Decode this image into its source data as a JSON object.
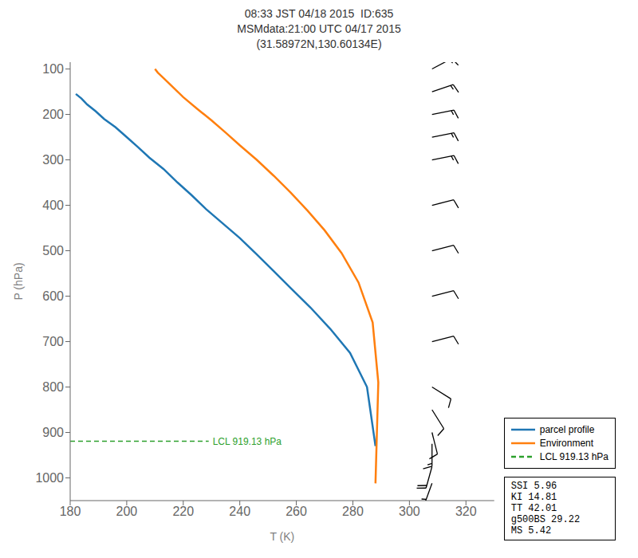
{
  "chart_data": {
    "type": "line",
    "title": "08:33 JST 04/18 2015  ID:635\nMSMdata:21:00 UTC 04/17 2015\n(31.58972N,130.60134E)",
    "xlabel": "T (K)",
    "ylabel": "P (hPa)",
    "xlim": [
      180,
      330
    ],
    "ylim": [
      1050,
      85
    ],
    "xticks": [
      180,
      200,
      220,
      240,
      260,
      280,
      300,
      320
    ],
    "yticks": [
      100,
      200,
      300,
      400,
      500,
      600,
      700,
      800,
      900,
      1000
    ],
    "grid": false,
    "legend": "lower right",
    "series": [
      {
        "name": "parcel profile",
        "color": "#1f77b4",
        "line_style": "solid",
        "x": [
          182,
          184,
          186,
          189,
          192,
          196,
          200,
          204,
          208,
          213,
          218,
          223,
          228,
          234,
          240,
          246,
          252,
          258,
          265,
          272,
          279,
          285,
          288
        ],
        "y": [
          155,
          165,
          178,
          193,
          210,
          228,
          250,
          272,
          295,
          320,
          350,
          378,
          408,
          440,
          472,
          508,
          545,
          582,
          625,
          672,
          725,
          800,
          930
        ]
      },
      {
        "name": "Environment",
        "color": "#ff7f0e",
        "line_style": "solid",
        "x": [
          210,
          211,
          213,
          216,
          220,
          225,
          230,
          235,
          240,
          246,
          252,
          258,
          264,
          270,
          276,
          282,
          287,
          289,
          288
        ],
        "y": [
          100,
          108,
          120,
          138,
          162,
          188,
          213,
          240,
          268,
          300,
          335,
          372,
          412,
          455,
          505,
          570,
          658,
          790,
          1012
        ]
      },
      {
        "name": "LCL 919.13 hPa",
        "color": "#2ca02c",
        "line_style": "dashed",
        "x": [
          180,
          229
        ],
        "y": [
          919.13,
          919.13
        ]
      }
    ],
    "annotations": [
      {
        "text": "LCL 919.13 hPa",
        "x": 229,
        "y": 919.13,
        "color": "#2ca02c"
      }
    ],
    "text_box": [
      "SSI 5.96",
      "KI 14.81",
      "TT 42.01",
      "g500BS 29.22",
      "MS 5.42"
    ],
    "barbs": {
      "x": [
        308,
        308,
        308,
        308,
        308,
        308,
        308,
        308,
        308,
        308,
        308,
        308,
        308,
        308,
        308
      ],
      "y": [
        100,
        150,
        200,
        250,
        300,
        400,
        500,
        600,
        700,
        800,
        850,
        900,
        925,
        975,
        1012
      ],
      "u": [
        -15,
        -15,
        -15,
        -15,
        -15,
        -12,
        -12,
        -12,
        -12,
        -8,
        -5,
        -3,
        0,
        5,
        8
      ],
      "v": [
        -8,
        -5,
        -3,
        -3,
        -3,
        -3,
        -3,
        -3,
        -3,
        5,
        8,
        12,
        15,
        18,
        22
      ],
      "increments": {
        "half": 5,
        "full": 10,
        "flag": 50
      }
    }
  }
}
